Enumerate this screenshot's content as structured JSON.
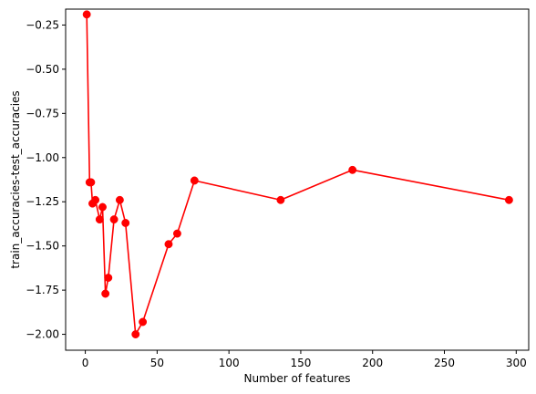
{
  "chart_data": {
    "type": "line",
    "title": "",
    "xlabel": "Number of features",
    "ylabel": "train_accuracies-test_accuracies",
    "xlim": [
      -13.7,
      308.7
    ],
    "ylim": [
      -2.09,
      -0.16
    ],
    "xticks": [
      0,
      50,
      100,
      150,
      200,
      250,
      300
    ],
    "xtick_labels": [
      "0",
      "50",
      "100",
      "150",
      "200",
      "250",
      "300"
    ],
    "yticks": [
      -2.0,
      -1.75,
      -1.5,
      -1.25,
      -1.0,
      -0.75,
      -0.5,
      -0.25
    ],
    "ytick_labels": [
      "−2.00",
      "−1.75",
      "−1.50",
      "−1.25",
      "−1.00",
      "−0.75",
      "−0.50",
      "−0.25"
    ],
    "grid": false,
    "legend": "none",
    "series": [
      {
        "color": "#ff0000",
        "marker": "circle",
        "x": [
          1,
          3,
          4,
          5,
          7,
          10,
          12,
          14,
          16,
          20,
          24,
          28,
          35,
          40,
          58,
          64,
          76,
          136,
          186,
          295
        ],
        "y": [
          -0.19,
          -1.14,
          -1.14,
          -1.26,
          -1.24,
          -1.35,
          -1.28,
          -1.77,
          -1.68,
          -1.35,
          -1.24,
          -1.37,
          -2.0,
          -1.93,
          -1.49,
          -1.43,
          -1.13,
          -1.24,
          -1.07,
          -1.24
        ]
      }
    ]
  }
}
